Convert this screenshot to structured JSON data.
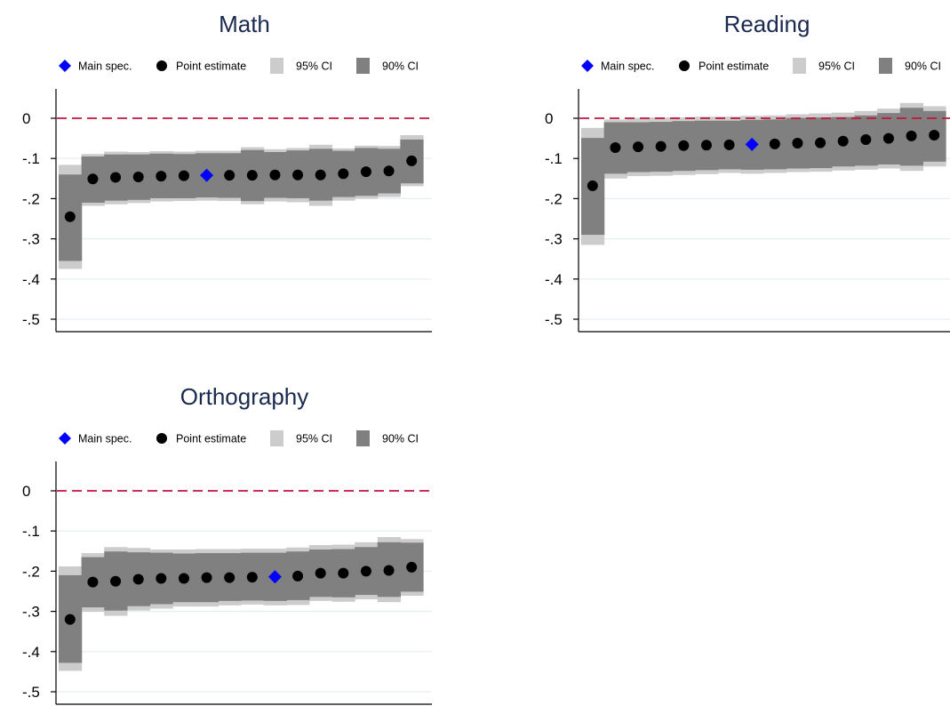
{
  "colors": {
    "main_spec": "#0000ff",
    "point": "#000000",
    "ci95": "#cccccc",
    "ci90": "#808080",
    "zero_line": "#c0143c",
    "grid": "#e6eef2",
    "title": "#1a2a4f"
  },
  "legend_labels": {
    "main_spec": "Main spec.",
    "point": "Point estimate",
    "ci95": "95% CI",
    "ci90": "90% CI"
  },
  "chart_data": [
    {
      "type": "scatter",
      "title": "Math",
      "xlabel": "",
      "ylabel": "",
      "ylim": [
        -0.56,
        0.07
      ],
      "yticks": [
        0,
        -0.1,
        -0.2,
        -0.3,
        -0.4,
        -0.5
      ],
      "ytick_labels": [
        "0",
        "-.1",
        "-.2",
        "-.3",
        "-.4",
        "-.5"
      ],
      "grid": true,
      "legend": "top",
      "reference_line": 0,
      "main_spec_index": 6,
      "estimates": [
        -0.245,
        -0.151,
        -0.147,
        -0.146,
        -0.144,
        -0.143,
        -0.142,
        -0.142,
        -0.142,
        -0.141,
        -0.141,
        -0.141,
        -0.138,
        -0.133,
        -0.131,
        -0.106
      ],
      "ci95": [
        [
          -0.375,
          -0.116
        ],
        [
          -0.218,
          -0.089
        ],
        [
          -0.214,
          -0.083
        ],
        [
          -0.211,
          -0.084
        ],
        [
          -0.207,
          -0.082
        ],
        [
          -0.206,
          -0.083
        ],
        [
          -0.205,
          -0.081
        ],
        [
          -0.206,
          -0.081
        ],
        [
          -0.214,
          -0.072
        ],
        [
          -0.207,
          -0.077
        ],
        [
          -0.209,
          -0.074
        ],
        [
          -0.218,
          -0.066
        ],
        [
          -0.205,
          -0.075
        ],
        [
          -0.2,
          -0.068
        ],
        [
          -0.196,
          -0.069
        ],
        [
          -0.169,
          -0.042
        ]
      ],
      "ci90": [
        [
          -0.355,
          -0.14
        ],
        [
          -0.21,
          -0.095
        ],
        [
          -0.205,
          -0.09
        ],
        [
          -0.203,
          -0.09
        ],
        [
          -0.199,
          -0.088
        ],
        [
          -0.199,
          -0.089
        ],
        [
          -0.197,
          -0.087
        ],
        [
          -0.198,
          -0.087
        ],
        [
          -0.206,
          -0.079
        ],
        [
          -0.198,
          -0.084
        ],
        [
          -0.199,
          -0.08
        ],
        [
          -0.205,
          -0.076
        ],
        [
          -0.196,
          -0.081
        ],
        [
          -0.193,
          -0.074
        ],
        [
          -0.187,
          -0.076
        ],
        [
          -0.162,
          -0.053
        ]
      ]
    },
    {
      "type": "scatter",
      "title": "Reading",
      "xlabel": "",
      "ylabel": "",
      "ylim": [
        -0.56,
        0.07
      ],
      "yticks": [
        0,
        -0.1,
        -0.2,
        -0.3,
        -0.4,
        -0.5
      ],
      "ytick_labels": [
        "0",
        "-.1",
        "-.2",
        "-.3",
        "-.4",
        "-.5"
      ],
      "grid": true,
      "legend": "top",
      "reference_line": 0,
      "main_spec_index": 7,
      "estimates": [
        -0.168,
        -0.073,
        -0.071,
        -0.07,
        -0.068,
        -0.067,
        -0.066,
        -0.065,
        -0.064,
        -0.062,
        -0.061,
        -0.057,
        -0.053,
        -0.05,
        -0.044,
        -0.042
      ],
      "ci95": [
        [
          -0.315,
          -0.024
        ],
        [
          -0.15,
          -0.003
        ],
        [
          -0.144,
          0.001
        ],
        [
          -0.143,
          0.002
        ],
        [
          -0.141,
          0.002
        ],
        [
          -0.139,
          0.004
        ],
        [
          -0.136,
          0.004
        ],
        [
          -0.138,
          0.006
        ],
        [
          -0.136,
          0.007
        ],
        [
          -0.134,
          0.01
        ],
        [
          -0.133,
          0.012
        ],
        [
          -0.13,
          0.014
        ],
        [
          -0.128,
          0.018
        ],
        [
          -0.125,
          0.024
        ],
        [
          -0.131,
          0.038
        ],
        [
          -0.12,
          0.03
        ]
      ],
      "ci90": [
        [
          -0.29,
          -0.049
        ],
        [
          -0.138,
          -0.01
        ],
        [
          -0.134,
          -0.01
        ],
        [
          -0.133,
          -0.009
        ],
        [
          -0.131,
          -0.007
        ],
        [
          -0.129,
          -0.006
        ],
        [
          -0.127,
          -0.006
        ],
        [
          -0.128,
          -0.004
        ],
        [
          -0.127,
          -0.003
        ],
        [
          -0.125,
          0.001
        ],
        [
          -0.124,
          0.002
        ],
        [
          -0.12,
          0.003
        ],
        [
          -0.118,
          0.007
        ],
        [
          -0.115,
          0.013
        ],
        [
          -0.118,
          0.026
        ],
        [
          -0.108,
          0.018
        ]
      ]
    },
    {
      "type": "scatter",
      "title": "Orthography",
      "xlabel": "",
      "ylabel": "",
      "ylim": [
        -0.56,
        0.07
      ],
      "yticks": [
        0,
        -0.1,
        -0.2,
        -0.3,
        -0.4,
        -0.5
      ],
      "ytick_labels": [
        "0",
        "-.1",
        "-.2",
        "-.3",
        "-.4",
        "-.5"
      ],
      "grid": true,
      "legend": "top",
      "reference_line": 0,
      "main_spec_index": 9,
      "estimates": [
        -0.32,
        -0.227,
        -0.225,
        -0.22,
        -0.218,
        -0.218,
        -0.216,
        -0.216,
        -0.215,
        -0.214,
        -0.212,
        -0.205,
        -0.205,
        -0.2,
        -0.198,
        -0.19
      ],
      "ci95": [
        [
          -0.448,
          -0.188
        ],
        [
          -0.301,
          -0.155
        ],
        [
          -0.311,
          -0.14
        ],
        [
          -0.298,
          -0.142
        ],
        [
          -0.293,
          -0.146
        ],
        [
          -0.288,
          -0.146
        ],
        [
          -0.288,
          -0.145
        ],
        [
          -0.285,
          -0.145
        ],
        [
          -0.283,
          -0.144
        ],
        [
          -0.285,
          -0.144
        ],
        [
          -0.284,
          -0.141
        ],
        [
          -0.274,
          -0.135
        ],
        [
          -0.276,
          -0.134
        ],
        [
          -0.27,
          -0.128
        ],
        [
          -0.277,
          -0.115
        ],
        [
          -0.261,
          -0.12
        ]
      ],
      "ci90": [
        [
          -0.428,
          -0.21
        ],
        [
          -0.29,
          -0.165
        ],
        [
          -0.298,
          -0.151
        ],
        [
          -0.287,
          -0.153
        ],
        [
          -0.282,
          -0.154
        ],
        [
          -0.277,
          -0.156
        ],
        [
          -0.277,
          -0.155
        ],
        [
          -0.274,
          -0.155
        ],
        [
          -0.273,
          -0.154
        ],
        [
          -0.274,
          -0.154
        ],
        [
          -0.272,
          -0.151
        ],
        [
          -0.264,
          -0.146
        ],
        [
          -0.265,
          -0.145
        ],
        [
          -0.259,
          -0.14
        ],
        [
          -0.264,
          -0.128
        ],
        [
          -0.251,
          -0.129
        ]
      ]
    }
  ]
}
